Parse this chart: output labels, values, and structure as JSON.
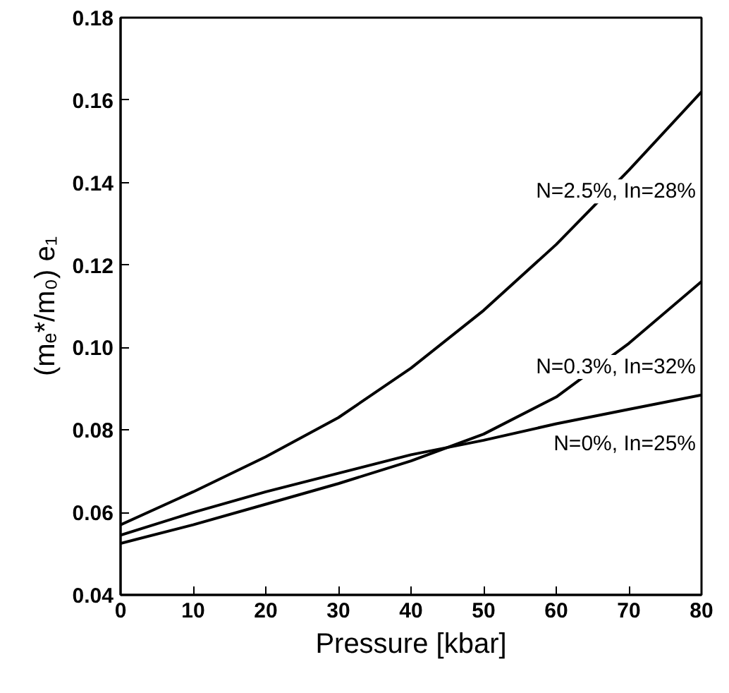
{
  "chart_data": {
    "type": "line",
    "xlabel": "Pressure [kbar]",
    "ylabel": "(mₑ*/m₀) e₁",
    "x": [
      0,
      10,
      20,
      30,
      40,
      50,
      60,
      70,
      80
    ],
    "xlim": [
      0,
      80
    ],
    "xticks": [
      0,
      10,
      20,
      30,
      40,
      50,
      60,
      70,
      80
    ],
    "ylim": [
      0.04,
      0.18
    ],
    "yticks": [
      {
        "value": 0.04,
        "label": "0.04"
      },
      {
        "value": 0.06,
        "label": "0.06"
      },
      {
        "value": 0.08,
        "label": "0.08"
      },
      {
        "value": 0.1,
        "label": "0.10"
      },
      {
        "value": 0.12,
        "label": "0.12"
      },
      {
        "value": 0.14,
        "label": "0.14"
      },
      {
        "value": 0.16,
        "label": "0.16"
      },
      {
        "value": 0.18,
        "label": "0.18"
      }
    ],
    "grid": false,
    "line_style": "solid",
    "marker": "none",
    "series": [
      {
        "name": "N=2.5%, In=28%",
        "color": "#000000",
        "values": [
          0.057,
          0.065,
          0.0735,
          0.083,
          0.095,
          0.109,
          0.125,
          0.143,
          0.162
        ]
      },
      {
        "name": "N=0.3%, In=32%",
        "color": "#000000",
        "values": [
          0.0525,
          0.057,
          0.062,
          0.067,
          0.0725,
          0.079,
          0.088,
          0.101,
          0.116
        ]
      },
      {
        "name": "N=0%, In=25%",
        "color": "#000000",
        "values": [
          0.0545,
          0.06,
          0.065,
          0.0695,
          0.074,
          0.0775,
          0.0815,
          0.085,
          0.0885
        ]
      }
    ]
  }
}
